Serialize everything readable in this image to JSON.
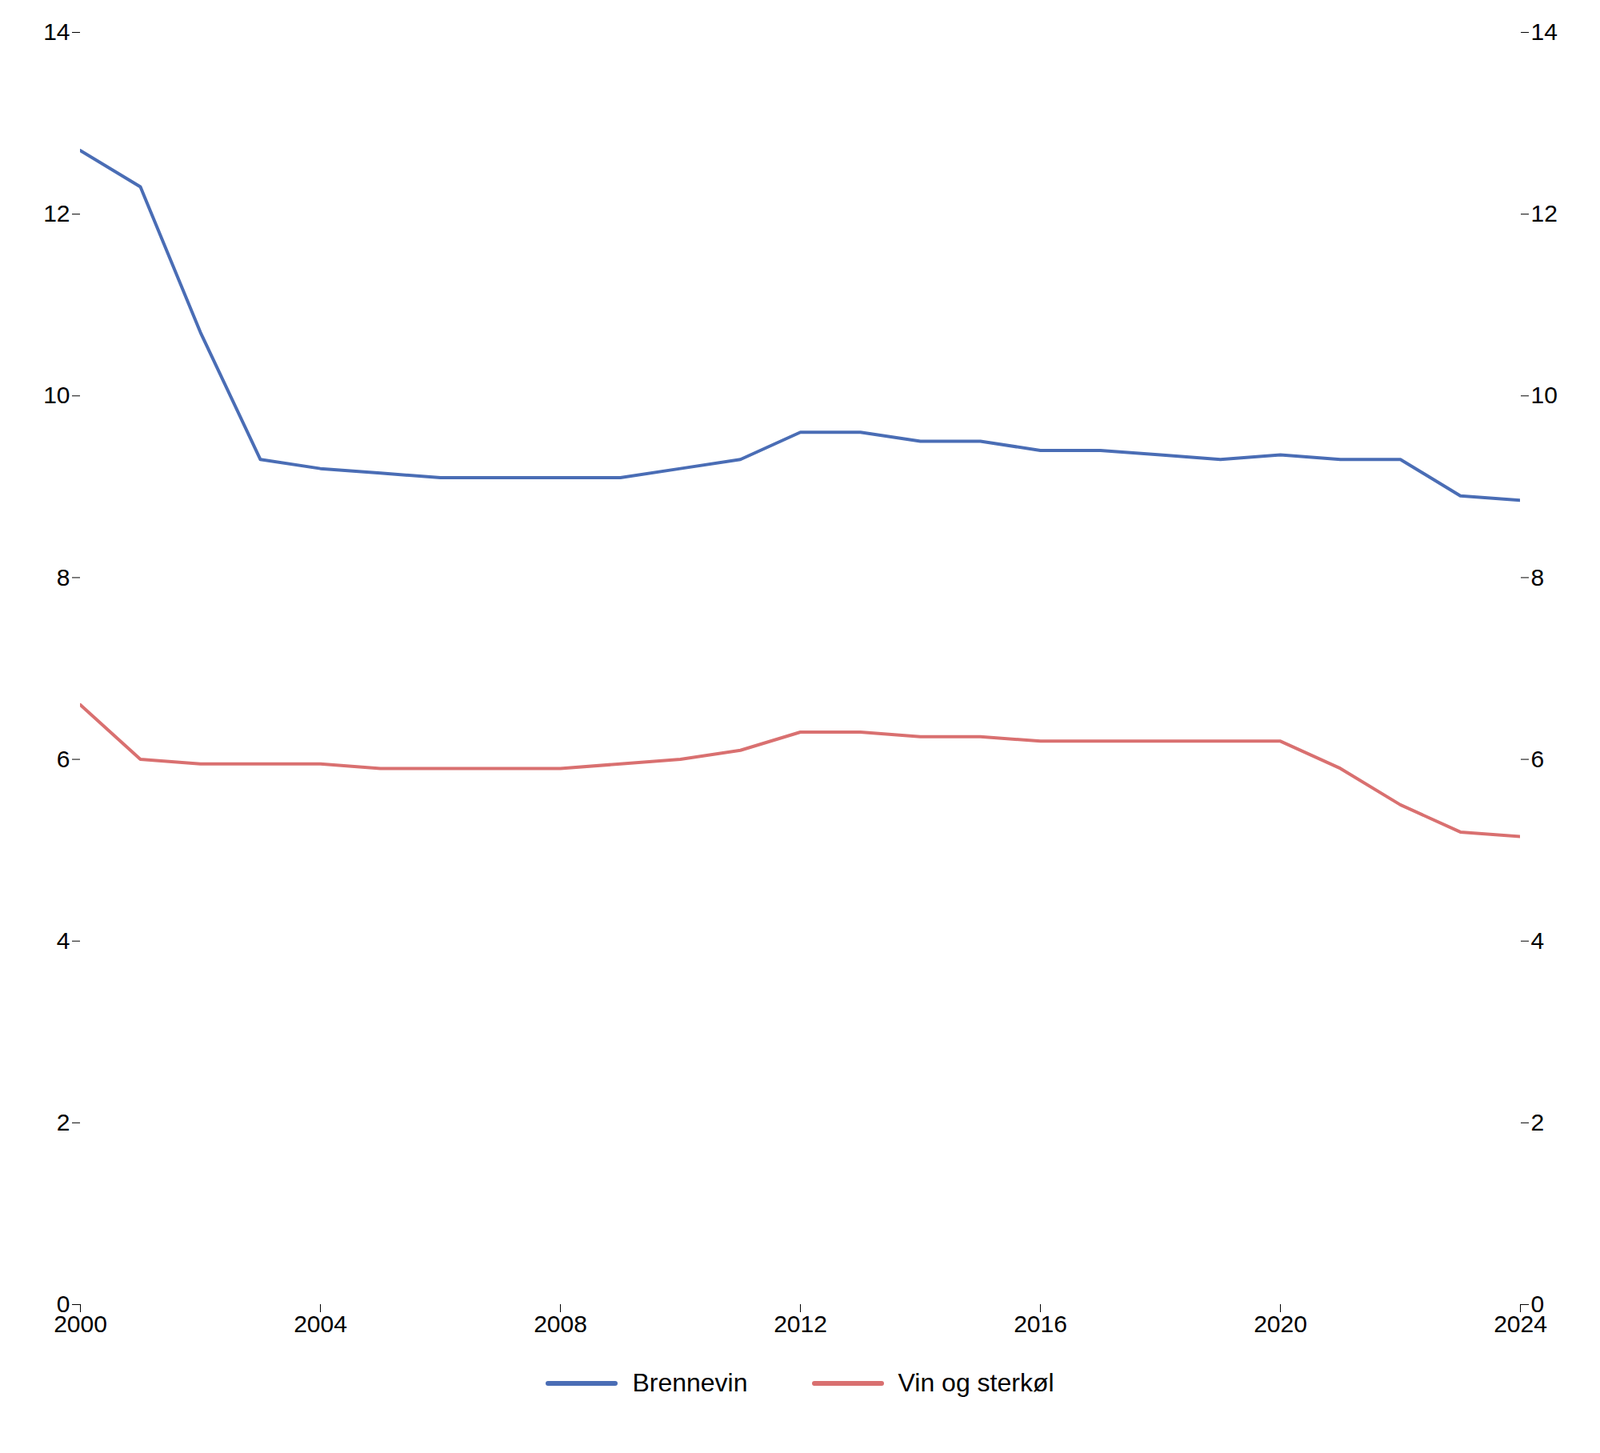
{
  "chart_data": {
    "type": "line",
    "x": [
      2000,
      2001,
      2002,
      2003,
      2004,
      2005,
      2006,
      2007,
      2008,
      2009,
      2010,
      2011,
      2012,
      2013,
      2014,
      2015,
      2016,
      2017,
      2018,
      2019,
      2020,
      2021,
      2022,
      2023,
      2024
    ],
    "series": [
      {
        "name": "Brennevin",
        "color": "#4a6db5",
        "values": [
          12.7,
          12.3,
          10.7,
          9.3,
          9.2,
          9.15,
          9.1,
          9.1,
          9.1,
          9.1,
          9.2,
          9.3,
          9.6,
          9.6,
          9.5,
          9.5,
          9.4,
          9.4,
          9.35,
          9.3,
          9.35,
          9.3,
          9.3,
          8.9,
          8.85
        ]
      },
      {
        "name": "Vin og sterkøl",
        "color": "#d97070",
        "values": [
          6.6,
          6.0,
          5.95,
          5.95,
          5.95,
          5.9,
          5.9,
          5.9,
          5.9,
          5.95,
          6.0,
          6.1,
          6.3,
          6.3,
          6.25,
          6.25,
          6.2,
          6.2,
          6.2,
          6.2,
          6.2,
          5.9,
          5.5,
          5.2,
          5.15
        ]
      }
    ],
    "xlim": [
      2000,
      2024
    ],
    "xticks": [
      2000,
      2004,
      2008,
      2012,
      2016,
      2020,
      2024
    ],
    "ylim": [
      0,
      14
    ],
    "yticks": [
      0,
      2,
      4,
      6,
      8,
      10,
      12,
      14
    ],
    "y2lim": [
      0,
      14
    ],
    "y2ticks": [
      0,
      2,
      4,
      6,
      8,
      10,
      12,
      14
    ],
    "grid": false,
    "legend": "bottom"
  }
}
